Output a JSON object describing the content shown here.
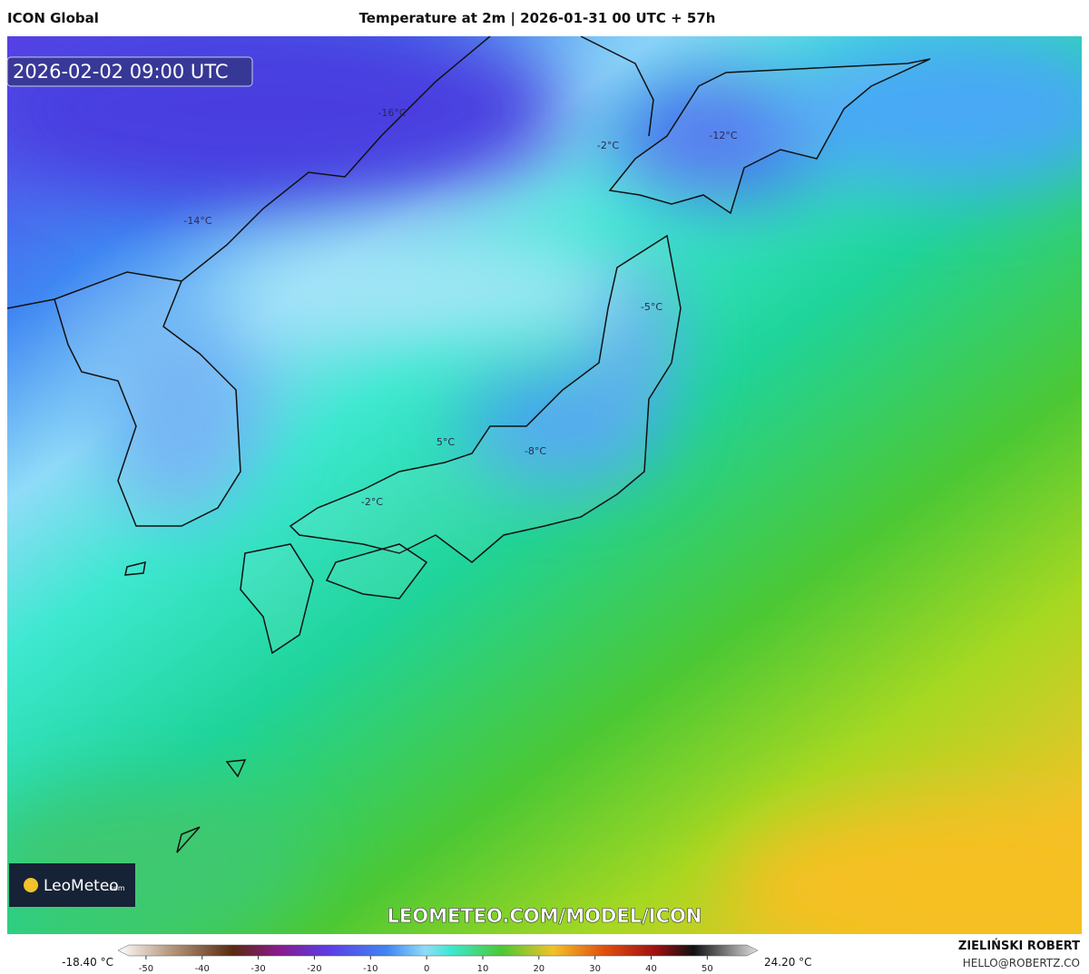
{
  "header": {
    "model": "ICON Global",
    "title": "Temperature at 2m | 2026-01-31 00 UTC + 57h"
  },
  "map": {
    "valid_time": "2026-02-02 09:00 UTC",
    "labels": [
      "-16°C",
      "-2°C",
      "-12°C",
      "-14°C",
      "-5°C",
      "5°C",
      "-8°C",
      "-2°C"
    ],
    "watermark": "LEOMETEO.COM/MODEL/ICON",
    "logo": {
      "name": "LeoMeteo",
      "suffix": ".com"
    }
  },
  "colorbar": {
    "min_label": "-18.40 °C",
    "max_label": "24.20 °C",
    "range": [
      -55,
      59
    ],
    "ticks": [
      -50,
      -40,
      -30,
      -20,
      -10,
      0,
      10,
      20,
      30,
      40,
      50
    ]
  },
  "footer": {
    "author": "ZIELIŃSKI ROBERT",
    "email": "HELLO@ROBERTZ.CO"
  }
}
